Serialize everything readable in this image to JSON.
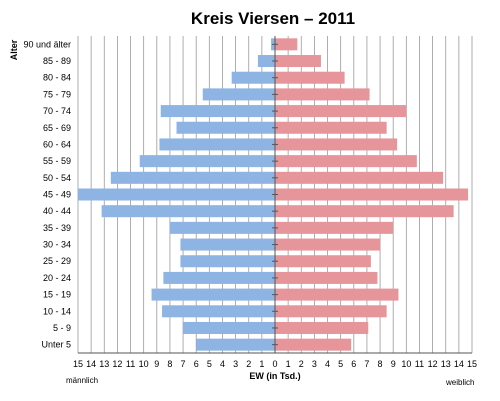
{
  "chart_data": {
    "type": "bar",
    "title": "Kreis Viersen – 2011",
    "yaxis_title": "Alter",
    "xlabel": "EW (in Tsd.)",
    "left_label": "männlich",
    "right_label": "weiblich",
    "xlim": [
      -15,
      15
    ],
    "x_ticks": [
      "15",
      "14",
      "13",
      "12",
      "11",
      "10",
      "9",
      "8",
      "7",
      "6",
      "5",
      "4",
      "3",
      "2",
      "1",
      "0",
      "1",
      "2",
      "3",
      "4",
      "5",
      "6",
      "7",
      "8",
      "9",
      "10",
      "11",
      "12",
      "13",
      "14",
      "15"
    ],
    "categories": [
      "90 und älter",
      "85 - 89",
      "80 - 84",
      "75 - 79",
      "70 - 74",
      "65 - 69",
      "60 - 64",
      "55 - 59",
      "50 - 54",
      "45 - 49",
      "40 - 44",
      "35 - 39",
      "30 - 34",
      "25 - 29",
      "20 - 24",
      "15 - 19",
      "10 - 14",
      "5 - 9",
      "Unter 5"
    ],
    "series": [
      {
        "name": "männlich",
        "color": "#8eb4e3",
        "values": [
          0.3,
          1.3,
          3.3,
          5.5,
          8.7,
          7.5,
          8.8,
          10.3,
          12.5,
          15.0,
          13.2,
          8.0,
          7.2,
          7.2,
          8.5,
          9.4,
          8.6,
          7.0,
          6.0
        ]
      },
      {
        "name": "weiblich",
        "color": "#e6969a",
        "values": [
          1.7,
          3.5,
          5.3,
          7.2,
          10.0,
          8.5,
          9.3,
          10.8,
          12.8,
          14.7,
          13.6,
          9.0,
          8.0,
          7.3,
          7.8,
          9.4,
          8.5,
          7.1,
          5.8
        ]
      }
    ],
    "grid": true
  }
}
